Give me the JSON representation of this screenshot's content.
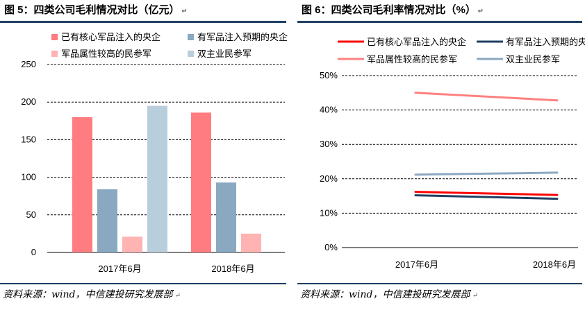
{
  "left": {
    "title": "图 5：四类公司毛利情况对比（亿元）",
    "source": "资料来源：wind，中信建投研究发展部",
    "chart_data": {
      "type": "bar",
      "title": "四类公司毛利情况对比（亿元）",
      "categories": [
        "2017年6月",
        "2018年6月"
      ],
      "series": [
        {
          "name": "已有核心军品注入的央企",
          "values": [
            180,
            186
          ],
          "color": "#ff7c80"
        },
        {
          "name": "有军品注入预期的央企",
          "values": [
            84,
            93
          ],
          "color": "#8aa8c0"
        },
        {
          "name": "军品属性较高的民参军",
          "values": [
            21,
            25
          ],
          "color": "#ffb3b3"
        },
        {
          "name": "双主业民参军",
          "values": [
            195,
            null
          ],
          "color": "#b8cedc"
        }
      ],
      "yticks": [
        "0",
        "50",
        "100",
        "150",
        "200",
        "250"
      ],
      "ylim": [
        0,
        250
      ],
      "xlabel": "",
      "ylabel": "",
      "legend": "top",
      "grid": "horizontal dashed"
    }
  },
  "right": {
    "title": "图 6：四类公司毛利率情况对比（%）",
    "source": "资料来源：wind，中信建投研究发展部",
    "chart_data": {
      "type": "line",
      "title": "四类公司毛利率情况对比（%）",
      "categories": [
        "2017年6月",
        "2018年6月"
      ],
      "series": [
        {
          "name": "已有核心军品注入的央企",
          "values": [
            16.2,
            15.3
          ],
          "color": "#ff0000"
        },
        {
          "name": "有军品注入预期的央",
          "values": [
            15.2,
            14.2
          ],
          "color": "#1f3f63"
        },
        {
          "name": "军品属性较高的民参军",
          "values": [
            45.0,
            42.8
          ],
          "color": "#ff8080"
        },
        {
          "name": "双主业民参军",
          "values": [
            21.2,
            21.8
          ],
          "color": "#8aa8c0"
        }
      ],
      "yticks": [
        "0%",
        "10%",
        "20%",
        "30%",
        "40%",
        "50%"
      ],
      "ylim": [
        0,
        50
      ],
      "xlabel": "",
      "ylabel": "",
      "legend": "top",
      "grid": "horizontal dashed"
    }
  }
}
